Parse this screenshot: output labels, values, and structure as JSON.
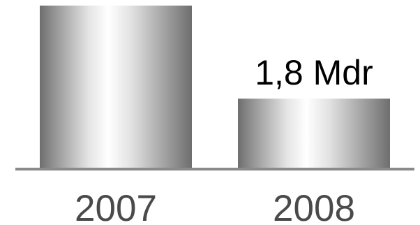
{
  "chart_data": {
    "type": "bar",
    "categories": [
      "2007",
      "2008"
    ],
    "values": [
      4.2,
      1.8
    ],
    "data_labels": [
      "",
      "1,8 Mdr"
    ],
    "ylim": [
      0,
      4.2
    ],
    "grid": false,
    "colors": {
      "bar_edge": "#6e6e6e",
      "bar_highlight": "#ffffff",
      "axis": "#8a8a8a",
      "tick_text": "#4a4a4a",
      "label_text": "#000000"
    }
  }
}
